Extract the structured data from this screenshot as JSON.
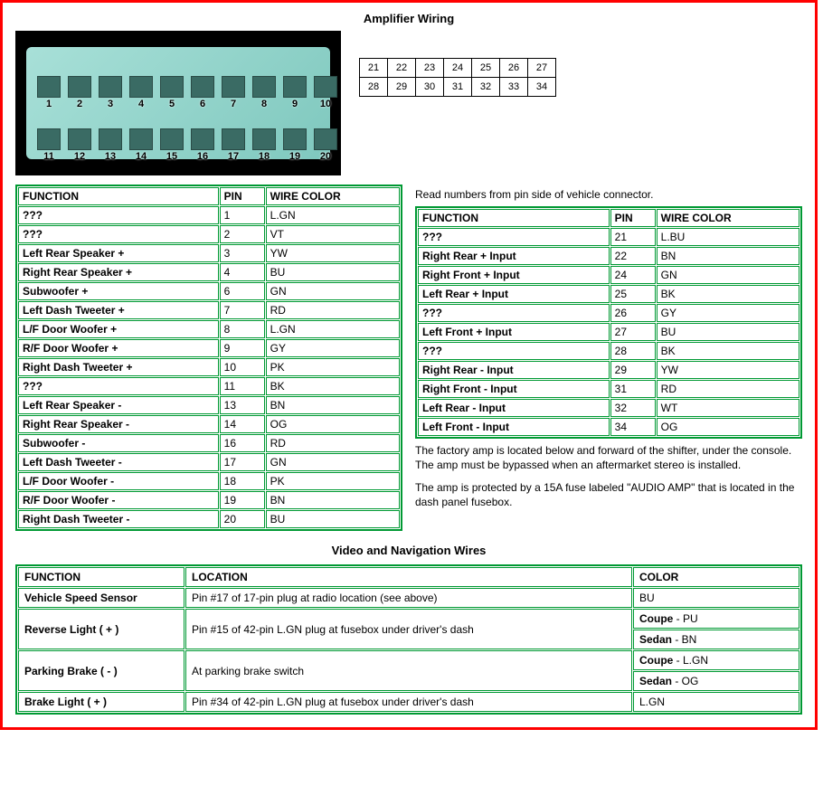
{
  "title": "Amplifier Wiring",
  "title2": "Video and Navigation Wires",
  "caption": "Read numbers from pin side of vehicle connector.",
  "pins_top": [
    "1",
    "2",
    "3",
    "4",
    "5",
    "6",
    "7",
    "8",
    "9",
    "10"
  ],
  "pins_bot": [
    "11",
    "12",
    "13",
    "14",
    "15",
    "16",
    "17",
    "18",
    "19",
    "20"
  ],
  "pinmap_row1": [
    "21",
    "22",
    "23",
    "24",
    "25",
    "26",
    "27"
  ],
  "pinmap_row2": [
    "28",
    "29",
    "30",
    "31",
    "32",
    "33",
    "34"
  ],
  "headers": {
    "function": "FUNCTION",
    "pin": "PIN",
    "wire": "WIRE COLOR",
    "location": "LOCATION",
    "color": "COLOR"
  },
  "left_table": [
    {
      "fn": "???",
      "pin": "1",
      "wc": "L.GN"
    },
    {
      "fn": "???",
      "pin": "2",
      "wc": "VT"
    },
    {
      "fn": "Left Rear Speaker +",
      "pin": "3",
      "wc": "YW"
    },
    {
      "fn": "Right Rear Speaker +",
      "pin": "4",
      "wc": "BU"
    },
    {
      "fn": "Subwoofer +",
      "pin": "6",
      "wc": "GN"
    },
    {
      "fn": "Left Dash Tweeter +",
      "pin": "7",
      "wc": "RD"
    },
    {
      "fn": "L/F Door Woofer +",
      "pin": "8",
      "wc": "L.GN"
    },
    {
      "fn": "R/F Door Woofer +",
      "pin": "9",
      "wc": "GY"
    },
    {
      "fn": "Right Dash Tweeter +",
      "pin": "10",
      "wc": "PK"
    },
    {
      "fn": "???",
      "pin": "11",
      "wc": "BK"
    },
    {
      "fn": "Left Rear Speaker -",
      "pin": "13",
      "wc": "BN"
    },
    {
      "fn": "Right Rear Speaker -",
      "pin": "14",
      "wc": "OG"
    },
    {
      "fn": "Subwoofer -",
      "pin": "16",
      "wc": "RD"
    },
    {
      "fn": "Left Dash Tweeter -",
      "pin": "17",
      "wc": "GN"
    },
    {
      "fn": "L/F Door Woofer -",
      "pin": "18",
      "wc": "PK"
    },
    {
      "fn": "R/F Door Woofer -",
      "pin": "19",
      "wc": "BN"
    },
    {
      "fn": "Right Dash Tweeter -",
      "pin": "20",
      "wc": "BU"
    }
  ],
  "right_table": [
    {
      "fn": "???",
      "pin": "21",
      "wc": "L.BU"
    },
    {
      "fn": "Right Rear + Input",
      "pin": "22",
      "wc": "BN"
    },
    {
      "fn": "Right Front + Input",
      "pin": "24",
      "wc": "GN"
    },
    {
      "fn": "Left Rear + Input",
      "pin": "25",
      "wc": "BK"
    },
    {
      "fn": "???",
      "pin": "26",
      "wc": "GY"
    },
    {
      "fn": "Left Front + Input",
      "pin": "27",
      "wc": "BU"
    },
    {
      "fn": "???",
      "pin": "28",
      "wc": "BK"
    },
    {
      "fn": "Right Rear - Input",
      "pin": "29",
      "wc": "YW"
    },
    {
      "fn": "Right Front - Input",
      "pin": "31",
      "wc": "RD"
    },
    {
      "fn": "Left Rear - Input",
      "pin": "32",
      "wc": "WT"
    },
    {
      "fn": "Left Front - Input",
      "pin": "34",
      "wc": "OG"
    }
  ],
  "note1": "The factory amp is located below and forward of the shifter, under the console. The amp must be bypassed when an aftermarket stereo is installed.",
  "note2": "The amp is protected by a 15A fuse labeled \"AUDIO AMP\" that is located in the dash panel fusebox.",
  "nav_rows": [
    {
      "fn": "Vehicle Speed Sensor",
      "loc": "Pin #17 of 17-pin plug at radio location (see above)",
      "colors": [
        "BU"
      ]
    },
    {
      "fn": "Reverse Light ( + )",
      "loc": "Pin #15 of 42-pin L.GN plug at fusebox under driver's dash",
      "colors": [
        "Coupe - PU",
        "Sedan - BN"
      ]
    },
    {
      "fn": "Parking Brake ( - )",
      "loc": "At parking brake switch",
      "colors": [
        "Coupe - L.GN",
        "Sedan - OG"
      ]
    },
    {
      "fn": "Brake Light ( + )",
      "loc": "Pin #34 of 42-pin L.GN plug at fusebox under driver's dash",
      "colors": [
        "L.GN"
      ]
    }
  ],
  "colors": {
    "border_outer": "#ff0000",
    "table_border": "#009933",
    "connector_fill": "#a8e0d8",
    "background": "#ffffff"
  }
}
